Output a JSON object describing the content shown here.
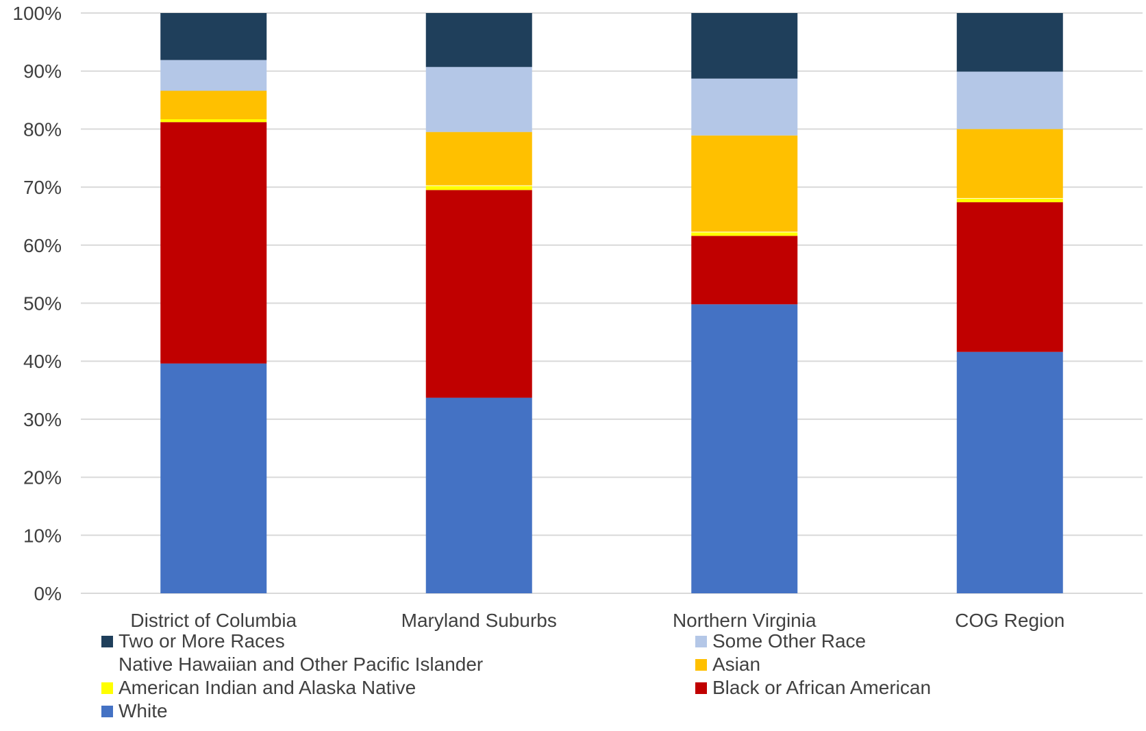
{
  "chart_data": {
    "type": "bar",
    "stacked": true,
    "normalized": true,
    "categories": [
      "District of Columbia",
      "Maryland Suburbs",
      "Northern Virginia",
      "COG Region"
    ],
    "ylim": [
      0,
      100
    ],
    "yticks": [
      0,
      10,
      20,
      30,
      40,
      50,
      60,
      70,
      80,
      90,
      100
    ],
    "ytick_suffix": "%",
    "grid": true,
    "legend_position": "bottom",
    "series": [
      {
        "name": "White",
        "color": "#4472C4",
        "values": [
          39.6,
          33.7,
          49.8,
          41.6
        ]
      },
      {
        "name": "Black or African American",
        "color": "#C00000",
        "values": [
          41.6,
          35.8,
          11.8,
          25.8
        ]
      },
      {
        "name": "American Indian and Alaska Native",
        "color": "#FFFF00",
        "values": [
          0.5,
          0.7,
          0.6,
          0.6
        ]
      },
      {
        "name": "Native Hawaiian and Other Pacific Islander",
        "color": "#FFFFFF",
        "values": [
          0.0,
          0.1,
          0.1,
          0.1
        ]
      },
      {
        "name": "Asian",
        "color": "#FFC000",
        "values": [
          4.9,
          9.2,
          16.6,
          11.9
        ]
      },
      {
        "name": "Some Other Race",
        "color": "#B4C7E7",
        "values": [
          5.3,
          11.2,
          9.8,
          9.9
        ]
      },
      {
        "name": "Two or More Races",
        "color": "#1F3F5B",
        "values": [
          8.1,
          9.3,
          11.3,
          10.1
        ]
      }
    ],
    "legend_order": [
      "Two or More Races",
      "Some Other Race",
      "Native Hawaiian and Other Pacific Islander",
      "Asian",
      "American Indian and Alaska Native",
      "Black or African American",
      "White"
    ]
  }
}
